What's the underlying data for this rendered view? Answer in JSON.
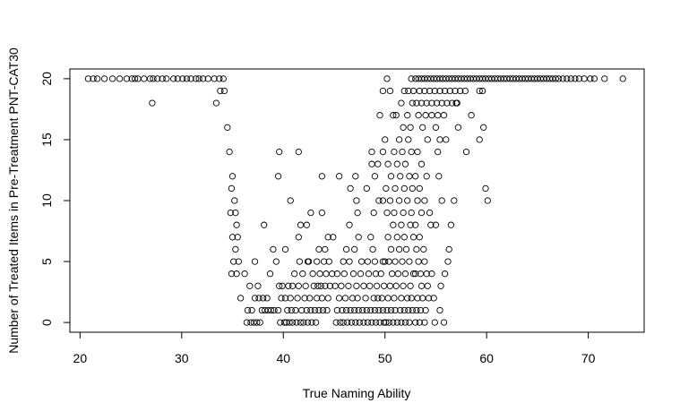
{
  "chart_data": {
    "type": "scatter",
    "title": "",
    "xlabel": "True Naming Ability",
    "ylabel": "Number of Treated Items in Pre-Treatment PNT-CAT30",
    "xlim": [
      19,
      75.5
    ],
    "ylim": [
      -0.8,
      20.8
    ],
    "x_ticks": [
      20,
      30,
      40,
      50,
      60,
      70
    ],
    "y_ticks": [
      0,
      5,
      10,
      15,
      20
    ],
    "x_tick_labels": [
      "20",
      "30",
      "40",
      "50",
      "60",
      "70"
    ],
    "y_tick_labels": [
      "0",
      "5",
      "10",
      "15",
      "20"
    ],
    "grid": false,
    "marker": "open-circle",
    "colors": {
      "points": "#000000",
      "axes": "#000000",
      "background": "#ffffff"
    },
    "points": [
      [
        20.8,
        20
      ],
      [
        21.3,
        20
      ],
      [
        21.7,
        20
      ],
      [
        22.4,
        20
      ],
      [
        23.2,
        20
      ],
      [
        23.9,
        20
      ],
      [
        24.6,
        20
      ],
      [
        25.1,
        20
      ],
      [
        25.4,
        20
      ],
      [
        25.7,
        20
      ],
      [
        26.3,
        20
      ],
      [
        26.9,
        20
      ],
      [
        27.2,
        20
      ],
      [
        27.6,
        20
      ],
      [
        28.1,
        20
      ],
      [
        28.5,
        20
      ],
      [
        29.2,
        20
      ],
      [
        29.6,
        20
      ],
      [
        30.1,
        20
      ],
      [
        30.5,
        20
      ],
      [
        30.9,
        20
      ],
      [
        31.4,
        20
      ],
      [
        31.7,
        20
      ],
      [
        32.1,
        20
      ],
      [
        32.6,
        20
      ],
      [
        33.2,
        20
      ],
      [
        33.7,
        20
      ],
      [
        34.1,
        20
      ],
      [
        27.1,
        18
      ],
      [
        33.4,
        18
      ],
      [
        33.8,
        19
      ],
      [
        34.2,
        19
      ],
      [
        34.5,
        16
      ],
      [
        34.7,
        14
      ],
      [
        35.0,
        12
      ],
      [
        34.9,
        11
      ],
      [
        35.2,
        10
      ],
      [
        34.8,
        9
      ],
      [
        35.3,
        9
      ],
      [
        35.4,
        8
      ],
      [
        35.0,
        7
      ],
      [
        35.5,
        7
      ],
      [
        35.3,
        6
      ],
      [
        35.1,
        5
      ],
      [
        35.6,
        5
      ],
      [
        34.9,
        4
      ],
      [
        35.4,
        4
      ],
      [
        35.8,
        2
      ],
      [
        36.2,
        4
      ],
      [
        36.4,
        0
      ],
      [
        36.8,
        0
      ],
      [
        37.1,
        0
      ],
      [
        37.4,
        0
      ],
      [
        37.7,
        0
      ],
      [
        36.5,
        1
      ],
      [
        36.9,
        1
      ],
      [
        37.2,
        2
      ],
      [
        37.6,
        2
      ],
      [
        37.9,
        1
      ],
      [
        38.2,
        1
      ],
      [
        38.5,
        1
      ],
      [
        38.8,
        1
      ],
      [
        39.1,
        1
      ],
      [
        36.7,
        3
      ],
      [
        37.5,
        3
      ],
      [
        38.0,
        2
      ],
      [
        38.4,
        2
      ],
      [
        38.7,
        4
      ],
      [
        38.1,
        8
      ],
      [
        37.2,
        5
      ],
      [
        39.3,
        5
      ],
      [
        39.0,
        6
      ],
      [
        39.6,
        3
      ],
      [
        39.9,
        3
      ],
      [
        39.8,
        2
      ],
      [
        39.5,
        1
      ],
      [
        39.7,
        0
      ],
      [
        40.1,
        0
      ],
      [
        40.3,
        0
      ],
      [
        40.6,
        0
      ],
      [
        40.9,
        0
      ],
      [
        41.3,
        0
      ],
      [
        41.7,
        0
      ],
      [
        42.0,
        0
      ],
      [
        42.4,
        0
      ],
      [
        42.8,
        0
      ],
      [
        43.2,
        0
      ],
      [
        40.4,
        1
      ],
      [
        40.8,
        1
      ],
      [
        41.2,
        1
      ],
      [
        41.8,
        1
      ],
      [
        42.3,
        1
      ],
      [
        42.7,
        1
      ],
      [
        43.1,
        1
      ],
      [
        43.5,
        1
      ],
      [
        43.9,
        1
      ],
      [
        44.3,
        1
      ],
      [
        40.2,
        2
      ],
      [
        40.7,
        2
      ],
      [
        41.4,
        2
      ],
      [
        42.1,
        2
      ],
      [
        42.6,
        2
      ],
      [
        43.3,
        2
      ],
      [
        43.8,
        2
      ],
      [
        44.4,
        2
      ],
      [
        40.5,
        3
      ],
      [
        40.9,
        3
      ],
      [
        41.5,
        3
      ],
      [
        42.2,
        3
      ],
      [
        43.0,
        3
      ],
      [
        43.4,
        3
      ],
      [
        43.7,
        3
      ],
      [
        44.1,
        3
      ],
      [
        44.6,
        3
      ],
      [
        41.1,
        4
      ],
      [
        41.9,
        4
      ],
      [
        42.9,
        4
      ],
      [
        43.6,
        4
      ],
      [
        44.2,
        4
      ],
      [
        44.8,
        4
      ],
      [
        41.6,
        5
      ],
      [
        42.5,
        5
      ],
      [
        43.3,
        5
      ],
      [
        44.0,
        5
      ],
      [
        44.5,
        5
      ],
      [
        43.5,
        6
      ],
      [
        44.1,
        6
      ],
      [
        40.2,
        6
      ],
      [
        44.4,
        7
      ],
      [
        44.9,
        7
      ],
      [
        41.7,
        8
      ],
      [
        42.3,
        8
      ],
      [
        42.7,
        9
      ],
      [
        43.8,
        9
      ],
      [
        40.7,
        10
      ],
      [
        39.5,
        12
      ],
      [
        39.6,
        14
      ],
      [
        41.5,
        14
      ],
      [
        43.8,
        12
      ],
      [
        45.5,
        12
      ],
      [
        42.4,
        5
      ],
      [
        41.5,
        7
      ],
      [
        45.2,
        0
      ],
      [
        45.6,
        0
      ],
      [
        45.9,
        0
      ],
      [
        46.3,
        0
      ],
      [
        46.7,
        0
      ],
      [
        47.1,
        0
      ],
      [
        47.5,
        0
      ],
      [
        47.9,
        0
      ],
      [
        48.3,
        0
      ],
      [
        48.7,
        0
      ],
      [
        49.1,
        0
      ],
      [
        49.5,
        0
      ],
      [
        49.9,
        0
      ],
      [
        45.3,
        1
      ],
      [
        45.8,
        1
      ],
      [
        46.2,
        1
      ],
      [
        46.6,
        1
      ],
      [
        47.0,
        1
      ],
      [
        47.4,
        1
      ],
      [
        47.8,
        1
      ],
      [
        48.2,
        1
      ],
      [
        48.6,
        1
      ],
      [
        49.0,
        1
      ],
      [
        49.4,
        1
      ],
      [
        49.8,
        1
      ],
      [
        45.5,
        2
      ],
      [
        46.1,
        2
      ],
      [
        46.8,
        2
      ],
      [
        47.3,
        2
      ],
      [
        48.1,
        2
      ],
      [
        48.9,
        2
      ],
      [
        49.3,
        2
      ],
      [
        49.7,
        2
      ],
      [
        45.1,
        3
      ],
      [
        45.7,
        3
      ],
      [
        46.4,
        3
      ],
      [
        47.2,
        3
      ],
      [
        47.9,
        3
      ],
      [
        48.5,
        3
      ],
      [
        49.2,
        3
      ],
      [
        49.9,
        3
      ],
      [
        45.3,
        4
      ],
      [
        46.0,
        4
      ],
      [
        46.9,
        4
      ],
      [
        47.6,
        4
      ],
      [
        48.4,
        4
      ],
      [
        49.1,
        4
      ],
      [
        49.6,
        4
      ],
      [
        45.9,
        5
      ],
      [
        46.5,
        5
      ],
      [
        47.7,
        5
      ],
      [
        48.3,
        5
      ],
      [
        49.0,
        5
      ],
      [
        49.8,
        5
      ],
      [
        46.2,
        6
      ],
      [
        47.0,
        6
      ],
      [
        48.8,
        6
      ],
      [
        47.4,
        7
      ],
      [
        48.6,
        7
      ],
      [
        46.5,
        8
      ],
      [
        47.3,
        9
      ],
      [
        48.9,
        9
      ],
      [
        49.4,
        10
      ],
      [
        49.8,
        10
      ],
      [
        46.6,
        11
      ],
      [
        47.2,
        10
      ],
      [
        48.7,
        13
      ],
      [
        49.3,
        13
      ],
      [
        49.8,
        14
      ],
      [
        48.2,
        11
      ],
      [
        49.0,
        12
      ],
      [
        48.7,
        14
      ],
      [
        47.1,
        12
      ],
      [
        50.1,
        0
      ],
      [
        50.4,
        0
      ],
      [
        50.8,
        0
      ],
      [
        51.2,
        0
      ],
      [
        51.6,
        0
      ],
      [
        52.0,
        0
      ],
      [
        52.4,
        0
      ],
      [
        50.2,
        1
      ],
      [
        50.6,
        1
      ],
      [
        51.0,
        1
      ],
      [
        51.5,
        1
      ],
      [
        51.9,
        1
      ],
      [
        52.3,
        1
      ],
      [
        52.7,
        1
      ],
      [
        50.3,
        2
      ],
      [
        50.9,
        2
      ],
      [
        51.6,
        2
      ],
      [
        52.2,
        2
      ],
      [
        52.6,
        2
      ],
      [
        50.5,
        3
      ],
      [
        51.1,
        3
      ],
      [
        51.8,
        3
      ],
      [
        52.5,
        3
      ],
      [
        50.7,
        4
      ],
      [
        51.3,
        4
      ],
      [
        52.0,
        4
      ],
      [
        52.8,
        4
      ],
      [
        50.0,
        5
      ],
      [
        50.4,
        5
      ],
      [
        51.0,
        5
      ],
      [
        51.7,
        5
      ],
      [
        52.4,
        5
      ],
      [
        50.6,
        6
      ],
      [
        51.4,
        6
      ],
      [
        52.1,
        6
      ],
      [
        50.3,
        7
      ],
      [
        51.2,
        7
      ],
      [
        51.9,
        7
      ],
      [
        52.8,
        7
      ],
      [
        50.8,
        8
      ],
      [
        51.6,
        8
      ],
      [
        52.5,
        8
      ],
      [
        50.2,
        9
      ],
      [
        50.9,
        9
      ],
      [
        51.8,
        9
      ],
      [
        52.6,
        9
      ],
      [
        50.5,
        10
      ],
      [
        51.4,
        10
      ],
      [
        52.2,
        10
      ],
      [
        50.1,
        11
      ],
      [
        51.0,
        11
      ],
      [
        51.9,
        11
      ],
      [
        52.7,
        11
      ],
      [
        50.6,
        12
      ],
      [
        51.5,
        12
      ],
      [
        52.4,
        12
      ],
      [
        50.3,
        13
      ],
      [
        51.2,
        13
      ],
      [
        52.0,
        13
      ],
      [
        50.9,
        14
      ],
      [
        51.7,
        14
      ],
      [
        52.6,
        14
      ],
      [
        50.0,
        15
      ],
      [
        51.4,
        15
      ],
      [
        52.3,
        15
      ],
      [
        51.8,
        16
      ],
      [
        52.5,
        16
      ],
      [
        51.1,
        17
      ],
      [
        52.2,
        17
      ],
      [
        51.6,
        18
      ],
      [
        52.7,
        18
      ],
      [
        51.9,
        19
      ],
      [
        52.3,
        19
      ],
      [
        52.8,
        19
      ],
      [
        50.5,
        19
      ],
      [
        49.8,
        19
      ],
      [
        50.2,
        20
      ],
      [
        52.6,
        20
      ],
      [
        49.5,
        17
      ],
      [
        50.8,
        17
      ],
      [
        53.0,
        0
      ],
      [
        53.4,
        0
      ],
      [
        53.9,
        0
      ],
      [
        54.9,
        0
      ],
      [
        53.1,
        1
      ],
      [
        53.5,
        1
      ],
      [
        54.0,
        1
      ],
      [
        55.4,
        1
      ],
      [
        53.2,
        2
      ],
      [
        53.7,
        2
      ],
      [
        54.3,
        2
      ],
      [
        54.8,
        2
      ],
      [
        53.6,
        3
      ],
      [
        54.2,
        3
      ],
      [
        53.0,
        4
      ],
      [
        53.5,
        4
      ],
      [
        54.1,
        4
      ],
      [
        54.6,
        4
      ],
      [
        53.3,
        5
      ],
      [
        53.9,
        5
      ],
      [
        53.1,
        6
      ],
      [
        53.8,
        6
      ],
      [
        53.4,
        7
      ],
      [
        53.0,
        8
      ],
      [
        54.5,
        8
      ],
      [
        53.6,
        9
      ],
      [
        53.2,
        10
      ],
      [
        54.4,
        9
      ],
      [
        53.9,
        10
      ],
      [
        53.4,
        11
      ],
      [
        53.0,
        12
      ],
      [
        54.1,
        12
      ],
      [
        53.6,
        13
      ],
      [
        53.2,
        14
      ],
      [
        54.2,
        15
      ],
      [
        53.7,
        16
      ],
      [
        55.0,
        16
      ],
      [
        55.4,
        15
      ],
      [
        53.3,
        17
      ],
      [
        54.0,
        17
      ],
      [
        54.6,
        17
      ],
      [
        55.2,
        17
      ],
      [
        55.8,
        17
      ],
      [
        53.1,
        18
      ],
      [
        53.6,
        18
      ],
      [
        54.1,
        18
      ],
      [
        54.6,
        18
      ],
      [
        55.1,
        18
      ],
      [
        55.6,
        18
      ],
      [
        56.1,
        18
      ],
      [
        56.6,
        18
      ],
      [
        57.1,
        18
      ],
      [
        53.4,
        19
      ],
      [
        53.9,
        19
      ],
      [
        54.4,
        19
      ],
      [
        54.9,
        19
      ],
      [
        55.4,
        19
      ],
      [
        55.9,
        19
      ],
      [
        56.4,
        19
      ],
      [
        56.9,
        19
      ],
      [
        57.4,
        19
      ],
      [
        57.9,
        19
      ],
      [
        59.3,
        19
      ],
      [
        59.6,
        19
      ],
      [
        53.0,
        20
      ],
      [
        53.3,
        20
      ],
      [
        53.6,
        20
      ],
      [
        53.9,
        20
      ],
      [
        54.2,
        20
      ],
      [
        54.5,
        20
      ],
      [
        54.8,
        20
      ],
      [
        55.1,
        20
      ],
      [
        55.4,
        20
      ],
      [
        55.7,
        20
      ],
      [
        56.0,
        20
      ],
      [
        56.3,
        20
      ],
      [
        56.6,
        20
      ],
      [
        56.9,
        20
      ],
      [
        57.2,
        20
      ],
      [
        57.5,
        20
      ],
      [
        57.8,
        20
      ],
      [
        58.1,
        20
      ],
      [
        58.4,
        20
      ],
      [
        58.7,
        20
      ],
      [
        59.0,
        20
      ],
      [
        59.3,
        20
      ],
      [
        59.6,
        20
      ],
      [
        59.9,
        20
      ],
      [
        55.3,
        12
      ],
      [
        55.0,
        8
      ],
      [
        55.6,
        10
      ],
      [
        55.2,
        14
      ],
      [
        56.5,
        8
      ],
      [
        56.2,
        5
      ],
      [
        56.8,
        10
      ],
      [
        56.0,
        15
      ],
      [
        57.2,
        16
      ],
      [
        58.0,
        14
      ],
      [
        58.5,
        17
      ],
      [
        59.3,
        15
      ],
      [
        59.7,
        16
      ],
      [
        59.9,
        11
      ],
      [
        60.1,
        10
      ],
      [
        56.3,
        6
      ],
      [
        55.9,
        4
      ],
      [
        55.5,
        3
      ],
      [
        55.8,
        0
      ],
      [
        57.0,
        18
      ],
      [
        60.2,
        20
      ],
      [
        60.5,
        20
      ],
      [
        60.8,
        20
      ],
      [
        61.1,
        20
      ],
      [
        61.4,
        20
      ],
      [
        61.7,
        20
      ],
      [
        62.0,
        20
      ],
      [
        62.3,
        20
      ],
      [
        62.6,
        20
      ],
      [
        62.9,
        20
      ],
      [
        63.2,
        20
      ],
      [
        63.5,
        20
      ],
      [
        63.8,
        20
      ],
      [
        64.1,
        20
      ],
      [
        64.4,
        20
      ],
      [
        64.7,
        20
      ],
      [
        65.0,
        20
      ],
      [
        65.3,
        20
      ],
      [
        65.6,
        20
      ],
      [
        65.9,
        20
      ],
      [
        66.2,
        20
      ],
      [
        66.5,
        20
      ],
      [
        66.8,
        20
      ],
      [
        67.1,
        20
      ],
      [
        67.5,
        20
      ],
      [
        67.9,
        20
      ],
      [
        68.3,
        20
      ],
      [
        68.7,
        20
      ],
      [
        69.1,
        20
      ],
      [
        69.6,
        20
      ],
      [
        70.2,
        20
      ],
      [
        70.6,
        20
      ],
      [
        71.6,
        20
      ],
      [
        73.4,
        20
      ]
    ]
  }
}
